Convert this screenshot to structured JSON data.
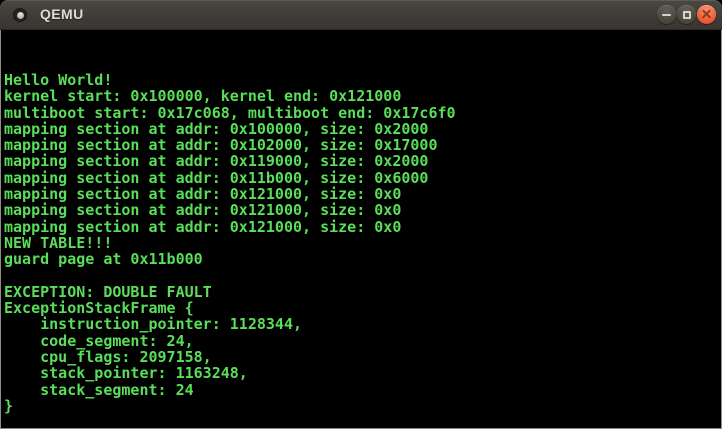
{
  "window": {
    "title": "QEMU",
    "icons": {
      "app": "window-icon",
      "minimize": "minimize-icon",
      "maximize": "maximize-icon",
      "close": "close-icon"
    },
    "colors": {
      "titlebar_top": "#4a4843",
      "titlebar_bottom": "#383631",
      "title_text": "#dfdbd3",
      "button_gray": "#454339",
      "close_button_orange": "#ef5d38",
      "window_border": "#8f8d88"
    }
  },
  "terminal": {
    "background": "#000000",
    "text_color": "#5ade5a",
    "lines": [
      "Hello World!",
      "kernel start: 0x100000, kernel end: 0x121000",
      "multiboot start: 0x17c068, multiboot end: 0x17c6f0",
      "mapping section at addr: 0x100000, size: 0x2000",
      "mapping section at addr: 0x102000, size: 0x17000",
      "mapping section at addr: 0x119000, size: 0x2000",
      "mapping section at addr: 0x11b000, size: 0x6000",
      "mapping section at addr: 0x121000, size: 0x0",
      "mapping section at addr: 0x121000, size: 0x0",
      "mapping section at addr: 0x121000, size: 0x0",
      "NEW TABLE!!!",
      "guard page at 0x11b000",
      "",
      "EXCEPTION: DOUBLE FAULT",
      "ExceptionStackFrame {",
      "    instruction_pointer: 1128344,",
      "    code_segment: 24,",
      "    cpu_flags: 2097158,",
      "    stack_pointer: 1163248,",
      "    stack_segment: 24",
      "}"
    ]
  }
}
